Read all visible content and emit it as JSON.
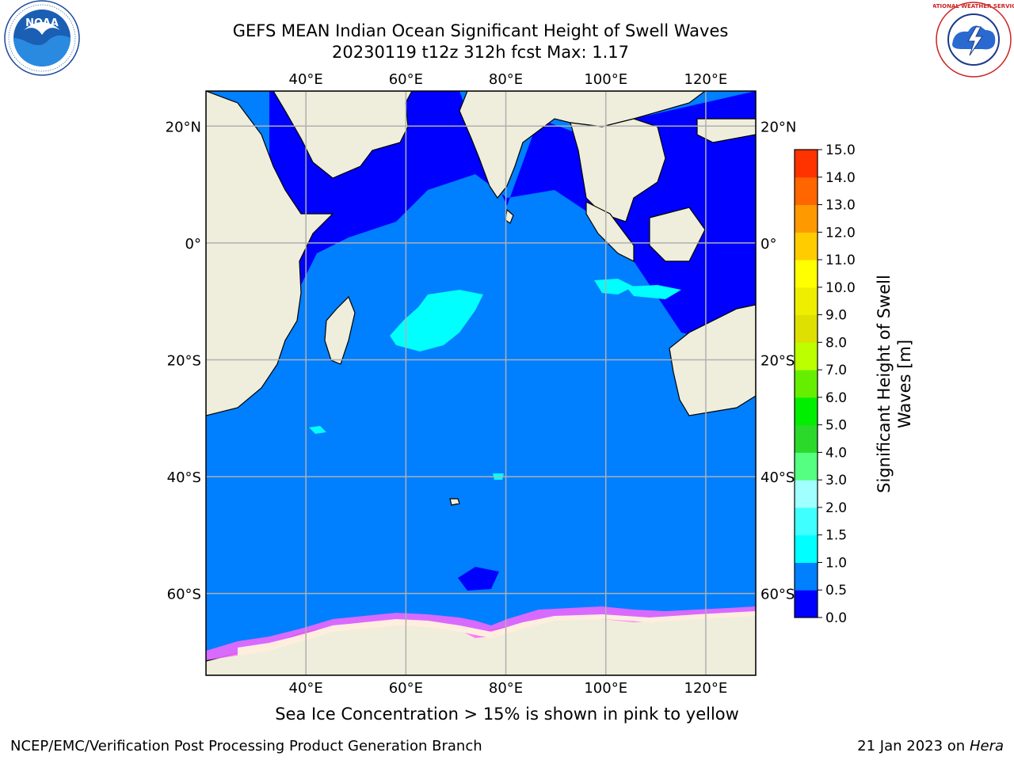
{
  "header": {
    "title_line1": "GEFS MEAN Indian Ocean Significant Height of Swell Waves",
    "title_line2": "20230119 t12z 312h fcst   Max: 1.17"
  },
  "map": {
    "lon_range": [
      20,
      130
    ],
    "lat_range": [
      -74,
      26
    ],
    "lon_ticks": [
      {
        "value": 40,
        "label": "40°E"
      },
      {
        "value": 60,
        "label": "60°E"
      },
      {
        "value": 80,
        "label": "80°E"
      },
      {
        "value": 100,
        "label": "100°E"
      },
      {
        "value": 120,
        "label": "120°E"
      }
    ],
    "lat_ticks": [
      {
        "value": 20,
        "label": "20°N"
      },
      {
        "value": 0,
        "label": "0°"
      },
      {
        "value": -20,
        "label": "20°S"
      },
      {
        "value": -40,
        "label": "40°S"
      },
      {
        "value": -60,
        "label": "60°S"
      }
    ],
    "land_color": "#efeedc",
    "ocean_base_color": "#007fff",
    "grid": true
  },
  "colorbar": {
    "label": "Significant Height of Swell Waves [m]",
    "label_line1": "Significant Height of Swell",
    "label_line2": "Waves [m]",
    "levels": [
      0.0,
      0.5,
      1.0,
      1.5,
      2.0,
      3.0,
      4.0,
      5.0,
      6.0,
      7.0,
      8.0,
      9.0,
      10.0,
      11.0,
      12.0,
      13.0,
      14.0,
      15.0
    ],
    "tick_labels": [
      "0.0",
      "0.5",
      "1.0",
      "1.5",
      "2.0",
      "3.0",
      "4.0",
      "5.0",
      "6.0",
      "7.0",
      "8.0",
      "9.0",
      "10.0",
      "11.0",
      "12.0",
      "13.0",
      "14.0",
      "15.0"
    ],
    "colors": [
      "#0000ff",
      "#007fff",
      "#00ffff",
      "#40ffff",
      "#a0ffff",
      "#55ff80",
      "#2bd92b",
      "#00ee00",
      "#66ee00",
      "#bbff00",
      "#dde000",
      "#eeee00",
      "#ffff00",
      "#ffcc00",
      "#ff9900",
      "#ff6600",
      "#ff3300",
      "#ff0000"
    ]
  },
  "footer": {
    "ice_caption": "Sea Ice Concentration > 15% is shown in pink to yellow",
    "credits": "NCEP/EMC/Verification Post Processing Product Generation Branch",
    "date": "21 Jan 2023 on",
    "machine": "Hera"
  },
  "logos": {
    "noaa_text": "NOAA",
    "nws_text": "NATIONAL WEATHER SERVICE"
  }
}
